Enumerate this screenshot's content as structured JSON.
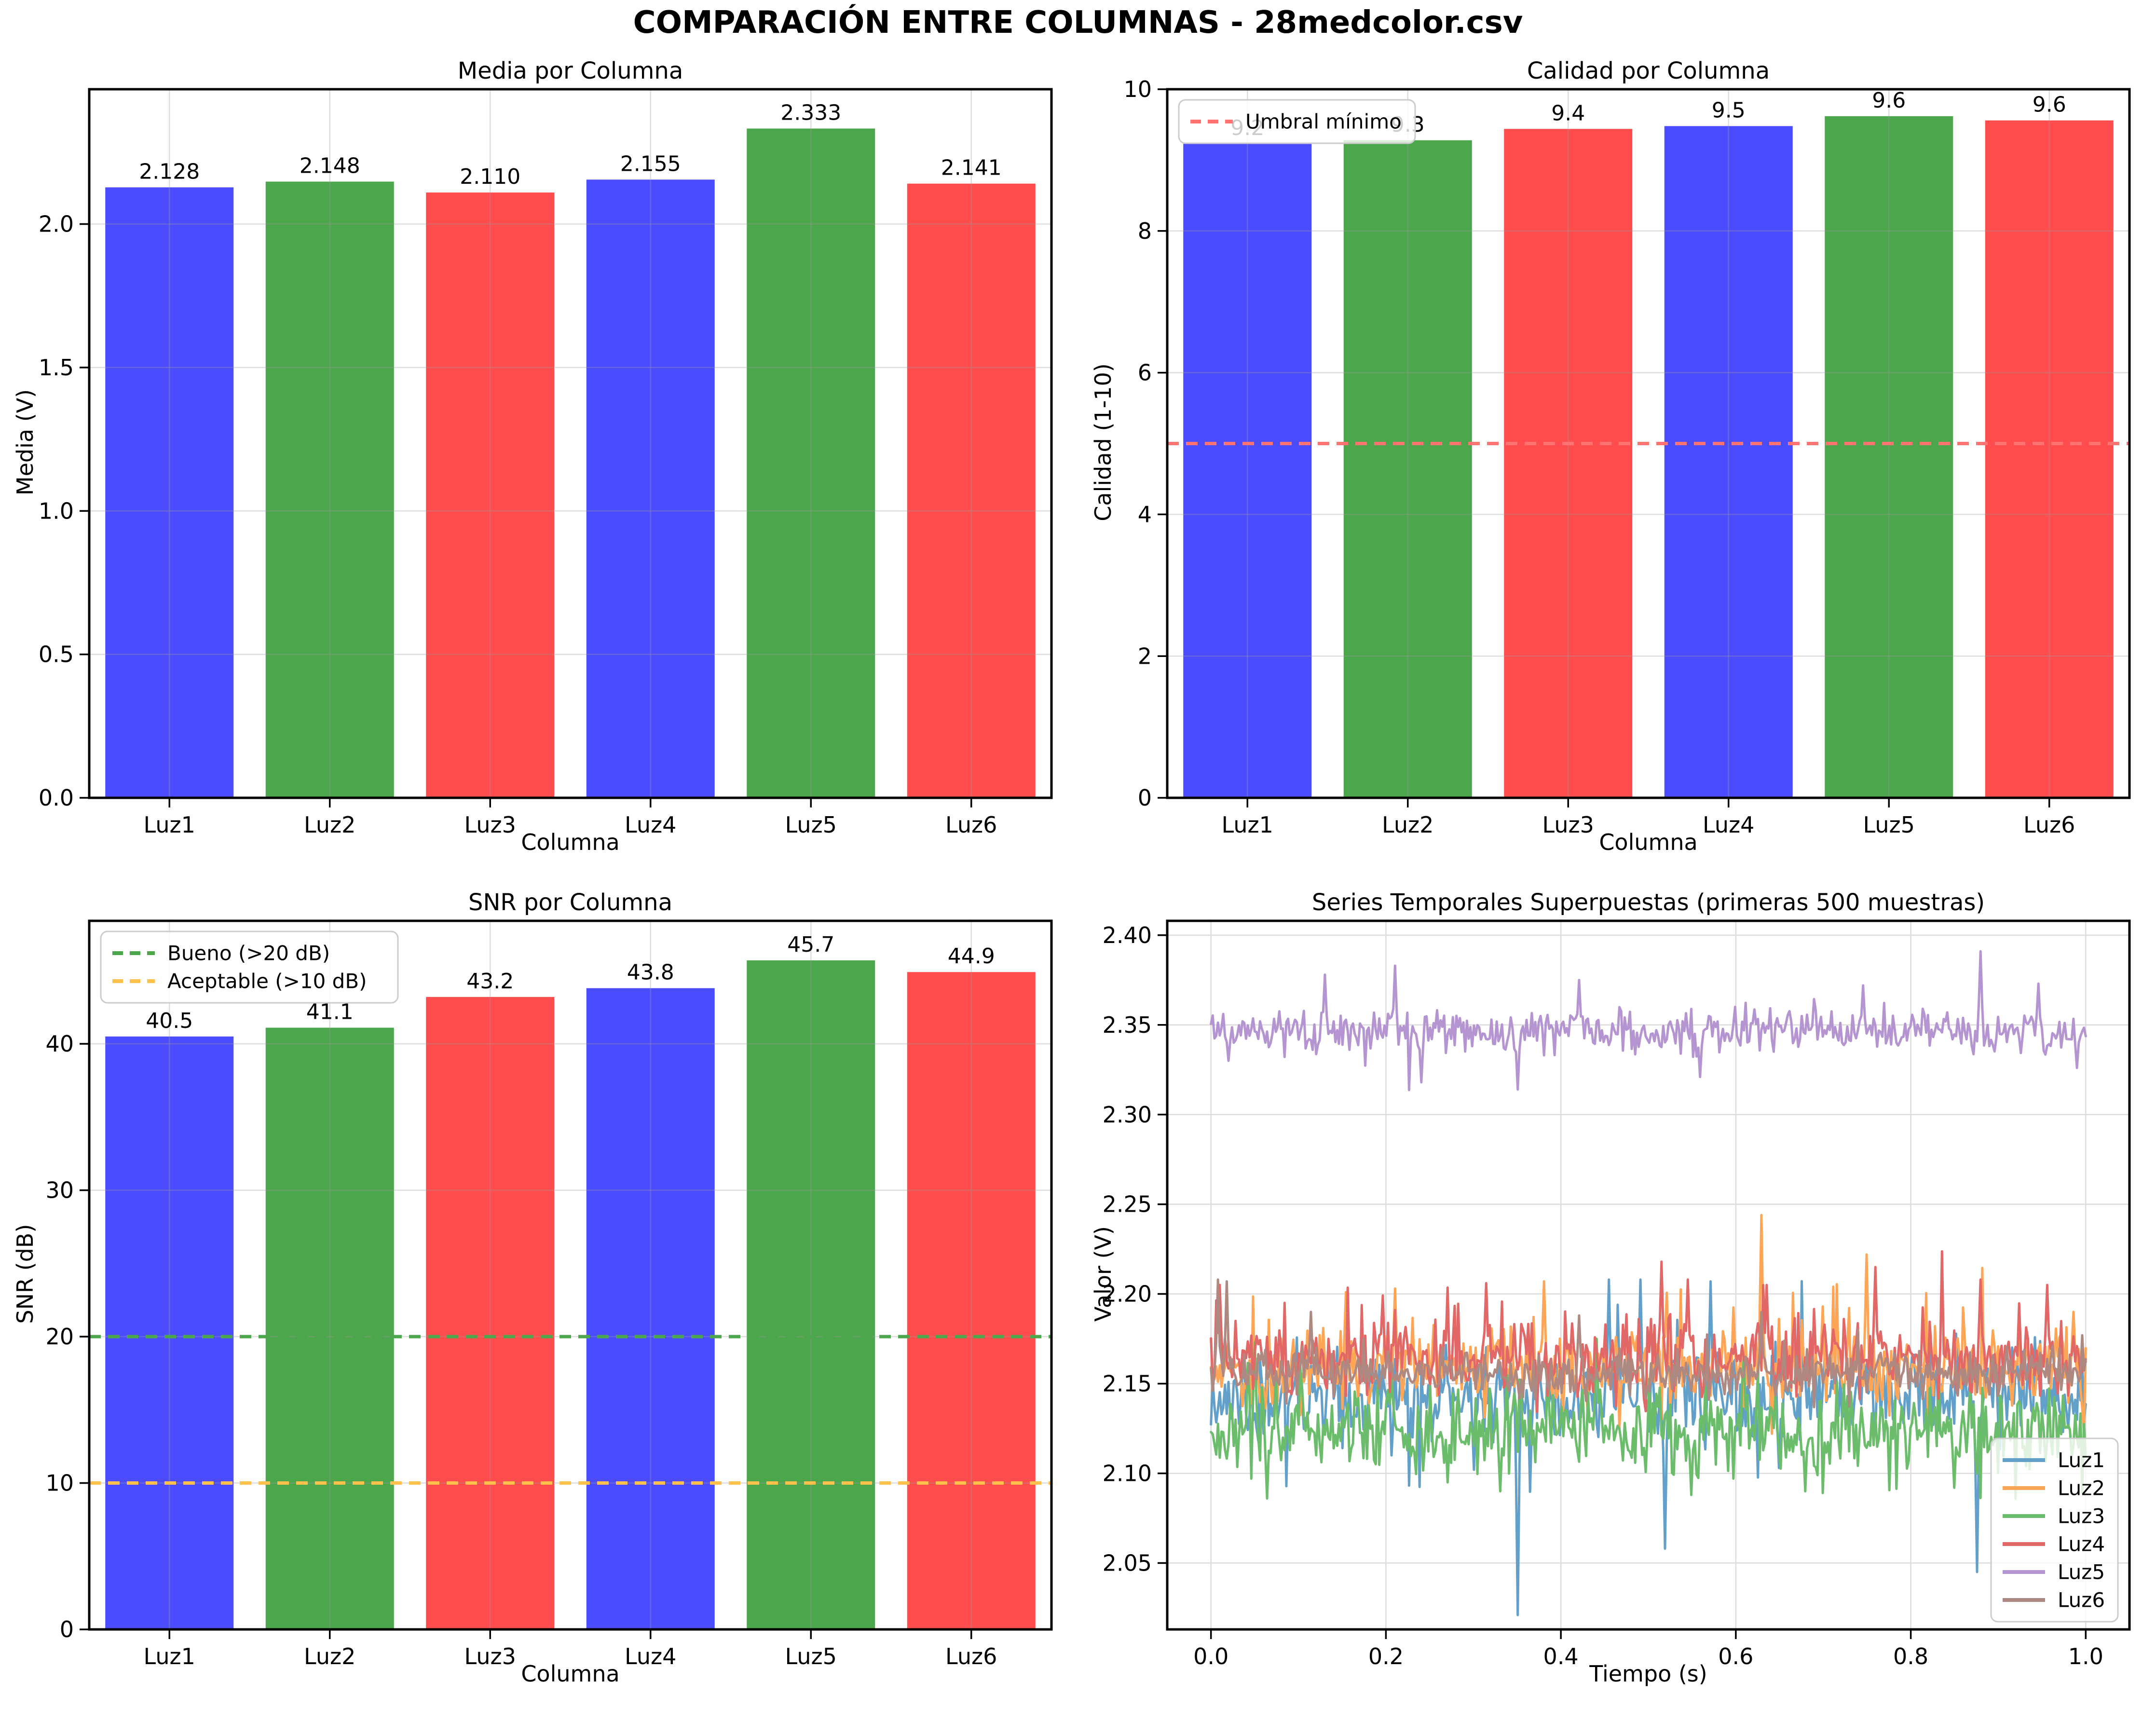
{
  "figure": {
    "suptitle": "COMPARACIÓN ENTRE COLUMNAS - 28medcolor.csv",
    "background": "#ffffff",
    "bar_palette": [
      "#4C4CFF",
      "#4CA64C",
      "#FF4C4C"
    ]
  },
  "chart_data": [
    {
      "type": "bar",
      "title": "Media por Columna",
      "xlabel": "Columna",
      "ylabel": "Media (V)",
      "categories": [
        "Luz1",
        "Luz2",
        "Luz3",
        "Luz4",
        "Luz5",
        "Luz6"
      ],
      "values": [
        2.128,
        2.148,
        2.11,
        2.155,
        2.333,
        2.141
      ],
      "value_labels": [
        "2.128",
        "2.148",
        "2.110",
        "2.155",
        "2.333",
        "2.141"
      ],
      "bar_colors": [
        "#4C4CFF",
        "#4CA64C",
        "#FF4C4C",
        "#4C4CFF",
        "#4CA64C",
        "#FF4C4C"
      ],
      "ylim": [
        0,
        2.47
      ],
      "yticks": [
        0.0,
        0.5,
        1.0,
        1.5,
        2.0
      ],
      "ytick_labels": [
        "0.0",
        "0.5",
        "1.0",
        "1.5",
        "2.0"
      ],
      "grid": true
    },
    {
      "type": "bar",
      "title": "Calidad por Columna",
      "xlabel": "Columna",
      "ylabel": "Calidad (1-10)",
      "categories": [
        "Luz1",
        "Luz2",
        "Luz3",
        "Luz4",
        "Luz5",
        "Luz6"
      ],
      "values": [
        9.2,
        9.3,
        9.4,
        9.5,
        9.6,
        9.6
      ],
      "value_labels": [
        "9.2",
        "9.3",
        "9.4",
        "9.5",
        "9.6",
        "9.6"
      ],
      "bar_heights": [
        9.23,
        9.28,
        9.44,
        9.48,
        9.62,
        9.56
      ],
      "bar_colors": [
        "#4C4CFF",
        "#4CA64C",
        "#FF4C4C",
        "#4C4CFF",
        "#4CA64C",
        "#FF4C4C"
      ],
      "ylim": [
        0,
        10
      ],
      "yticks": [
        0,
        2,
        4,
        6,
        8,
        10
      ],
      "ytick_labels": [
        "0",
        "2",
        "4",
        "6",
        "8",
        "10"
      ],
      "hlines": [
        {
          "y": 5,
          "label": "Umbral mínimo",
          "color": "#FF7373"
        }
      ],
      "legend": {
        "position": "upper-left"
      },
      "grid": true
    },
    {
      "type": "bar",
      "title": "SNR por Columna",
      "xlabel": "Columna",
      "ylabel": "SNR (dB)",
      "categories": [
        "Luz1",
        "Luz2",
        "Luz3",
        "Luz4",
        "Luz5",
        "Luz6"
      ],
      "values": [
        40.5,
        41.1,
        43.2,
        43.8,
        45.7,
        44.9
      ],
      "value_labels": [
        "40.5",
        "41.1",
        "43.2",
        "43.8",
        "45.7",
        "44.9"
      ],
      "bar_colors": [
        "#4C4CFF",
        "#4CA64C",
        "#FF4C4C",
        "#4C4CFF",
        "#4CA64C",
        "#FF4C4C"
      ],
      "ylim": [
        0,
        48.4
      ],
      "yticks": [
        0,
        10,
        20,
        30,
        40
      ],
      "ytick_labels": [
        "0",
        "10",
        "20",
        "30",
        "40"
      ],
      "hlines": [
        {
          "y": 20,
          "label": "Bueno (>20 dB)",
          "color": "#4CA64C"
        },
        {
          "y": 10,
          "label": "Aceptable (>10 dB)",
          "color": "#FFC04C"
        }
      ],
      "legend": {
        "position": "upper-left"
      },
      "grid": true
    },
    {
      "type": "line",
      "title": "Series Temporales Superpuestas (primeras 500 muestras)",
      "xlabel": "Tiempo (s)",
      "ylabel": "Valor (V)",
      "xlim": [
        -0.05,
        1.05
      ],
      "xticks": [
        0.0,
        0.2,
        0.4,
        0.6,
        0.8,
        1.0
      ],
      "xtick_labels": [
        "0.0",
        "0.2",
        "0.4",
        "0.6",
        "0.8",
        "1.0"
      ],
      "ylim": [
        2.013,
        2.408
      ],
      "yticks": [
        2.05,
        2.1,
        2.15,
        2.2,
        2.25,
        2.3,
        2.35,
        2.4
      ],
      "ytick_labels": [
        "2.05",
        "2.10",
        "2.15",
        "2.20",
        "2.25",
        "2.30",
        "2.35",
        "2.40"
      ],
      "n_points": 500,
      "legend": {
        "position": "lower-right"
      },
      "grid": true,
      "series": [
        {
          "name": "Luz1",
          "color": "#62A0CA",
          "mean": 2.142,
          "std": 0.0125,
          "spike_prob": 0.03,
          "spike_amp": 0.045,
          "spike_dir": 0,
          "seed": 11,
          "spikes": [
            [
              0.3,
              2.102
            ],
            [
              0.35,
              2.021
            ],
            [
              0.455,
              2.208
            ],
            [
              0.49,
              2.208
            ],
            [
              0.52,
              2.058
            ],
            [
              0.572,
              2.207
            ],
            [
              0.65,
              2.103
            ],
            [
              0.875,
              2.045
            ]
          ]
        },
        {
          "name": "Luz2",
          "color": "#FFA556",
          "mean": 2.158,
          "std": 0.011,
          "spike_prob": 0.04,
          "spike_amp": 0.035,
          "spike_dir": 1,
          "seed": 22,
          "spikes": [
            [
              0.155,
              2.201
            ],
            [
              0.21,
              2.203
            ],
            [
              0.38,
              2.207
            ],
            [
              0.63,
              2.244
            ],
            [
              0.75,
              2.222
            ],
            [
              0.985,
              2.19
            ]
          ]
        },
        {
          "name": "Luz3",
          "color": "#6BBC6B",
          "mean": 2.124,
          "std": 0.012,
          "spike_prob": 0.03,
          "spike_amp": 0.03,
          "spike_dir": -1,
          "seed": 33,
          "spikes": [
            [
              0.05,
              2.173
            ],
            [
              0.065,
              2.086
            ],
            [
              0.33,
              2.09
            ],
            [
              0.44,
              2.175
            ],
            [
              0.55,
              2.088
            ],
            [
              0.68,
              2.09
            ],
            [
              0.85,
              2.092
            ]
          ]
        },
        {
          "name": "Luz4",
          "color": "#E26868",
          "mean": 2.164,
          "std": 0.011,
          "spike_prob": 0.04,
          "spike_amp": 0.03,
          "spike_dir": 1,
          "seed": 44,
          "spikes": [
            [
              0.01,
              2.205
            ],
            [
              0.315,
              2.206
            ],
            [
              0.515,
              2.218
            ],
            [
              0.545,
              2.208
            ],
            [
              0.635,
              2.205
            ],
            [
              0.76,
              2.215
            ],
            [
              0.88,
              2.208
            ],
            [
              0.955,
              2.205
            ]
          ]
        },
        {
          "name": "Luz5",
          "color": "#B495D1",
          "mean": 2.346,
          "std": 0.006,
          "spike_prob": 0.02,
          "spike_amp": 0.025,
          "spike_dir": 0,
          "seed": 55,
          "spikes": [
            [
              0.02,
              2.33
            ],
            [
              0.13,
              2.378
            ],
            [
              0.21,
              2.383
            ],
            [
              0.24,
              2.318
            ],
            [
              0.35,
              2.314
            ],
            [
              0.42,
              2.375
            ],
            [
              0.56,
              2.321
            ],
            [
              0.745,
              2.372
            ],
            [
              0.88,
              2.391
            ],
            [
              0.945,
              2.373
            ],
            [
              0.99,
              2.326
            ]
          ]
        },
        {
          "name": "Luz6",
          "color": "#AE8981",
          "mean": 2.155,
          "std": 0.0065,
          "spike_prob": 0.012,
          "spike_amp": 0.02,
          "spike_dir": 1,
          "seed": 66,
          "spikes": [
            [
              0.008,
              2.208
            ],
            [
              0.018,
              2.207
            ],
            [
              0.115,
              2.19
            ],
            [
              0.42,
              2.188
            ],
            [
              0.63,
              2.19
            ]
          ]
        }
      ]
    }
  ]
}
